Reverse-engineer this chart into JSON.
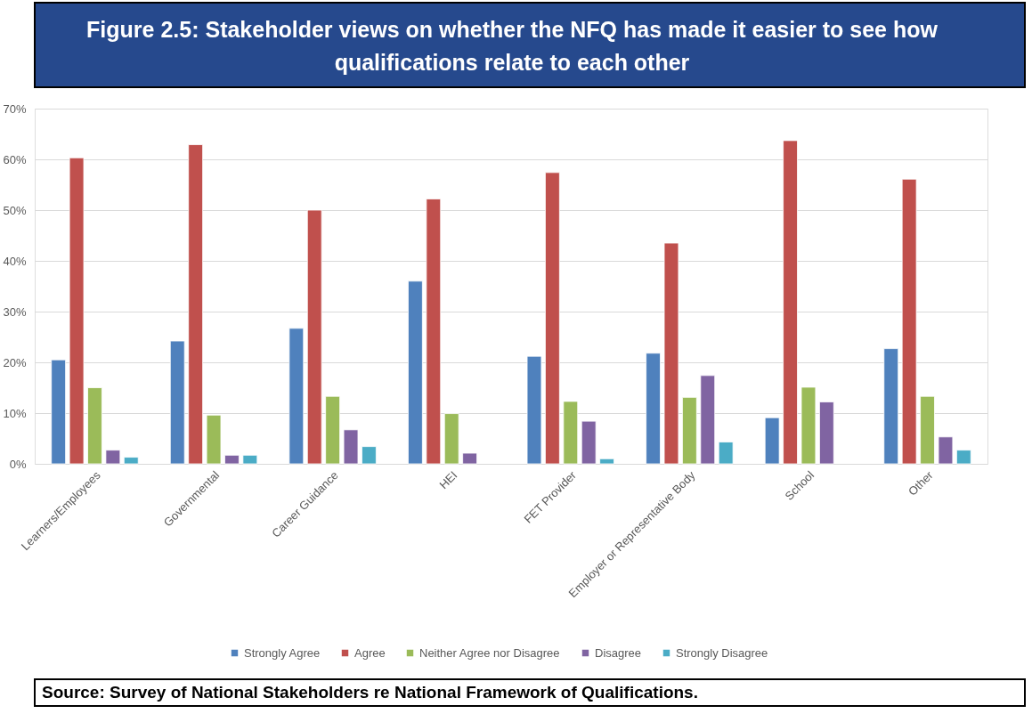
{
  "chart_data": {
    "type": "bar",
    "title": "Figure 2.5: Stakeholder views on whether the NFQ has made it easier to see how qualifications relate to each other",
    "categories": [
      "Learners/Employees",
      "Governmental",
      "Career Guidance",
      "HEI",
      "FET Provider",
      "Employer or Representative Body",
      "School",
      "Other"
    ],
    "series": [
      {
        "name": "Strongly Agree",
        "color": "#4f81bd",
        "values": [
          20.5,
          24.2,
          26.7,
          36.0,
          21.2,
          21.8,
          9.1,
          22.7
        ]
      },
      {
        "name": "Agree",
        "color": "#c0504d",
        "values": [
          60.3,
          62.9,
          50.0,
          52.2,
          57.4,
          43.5,
          63.7,
          56.1
        ]
      },
      {
        "name": "Neither Agree nor Disagree",
        "color": "#9bbb59",
        "values": [
          15.0,
          9.6,
          13.3,
          9.9,
          12.3,
          13.1,
          15.1,
          13.3
        ]
      },
      {
        "name": "Disagree",
        "color": "#8064a2",
        "values": [
          2.7,
          1.7,
          6.7,
          2.1,
          8.4,
          17.4,
          12.2,
          5.3
        ]
      },
      {
        "name": "Strongly Disagree",
        "color": "#4bacc6",
        "values": [
          1.3,
          1.7,
          3.4,
          null,
          1.0,
          4.3,
          null,
          2.7
        ]
      }
    ],
    "ylim": [
      0,
      70
    ],
    "yticks": [
      {
        "value": 0,
        "label": "0%"
      },
      {
        "value": 10,
        "label": "10%"
      },
      {
        "value": 20,
        "label": "20%"
      },
      {
        "value": 30,
        "label": "30%"
      },
      {
        "value": 40,
        "label": "40%"
      },
      {
        "value": 50,
        "label": "50%"
      },
      {
        "value": 60,
        "label": "60%"
      },
      {
        "value": 70,
        "label": "70%"
      }
    ],
    "grid": "y",
    "legend": "bottom",
    "annotations": [
      "Source: Survey of National Stakeholders re National Framework of Qualifications."
    ]
  }
}
